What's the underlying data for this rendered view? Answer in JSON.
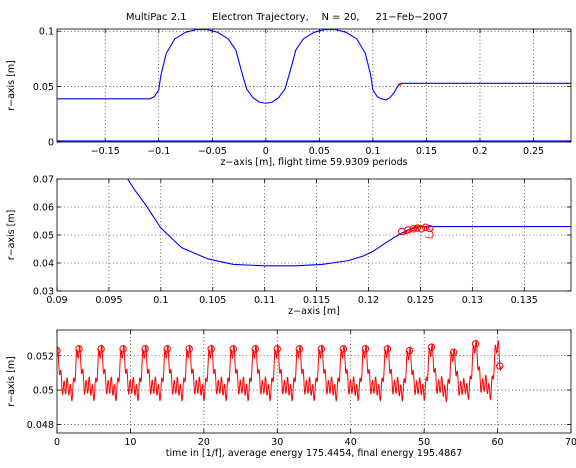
{
  "figure": {
    "title": "MultiPac 2.1        Electron Trajectory,    N = 20,     21−Feb−2007"
  },
  "colors": {
    "geometry": "#0000ff",
    "trajectory": "#ff0000",
    "axes": "#000000",
    "background": "#ffffff"
  },
  "chart_data": [
    {
      "type": "line",
      "title": "",
      "xlabel": "z−axis [m],  flight time 59.9309 periods",
      "ylabel": "r−axis [m]",
      "xlim": [
        -0.195,
        0.285
      ],
      "ylim": [
        0,
        0.102
      ],
      "xticks": [
        -0.15,
        -0.1,
        -0.05,
        0,
        0.05,
        0.1,
        0.15,
        0.2,
        0.25
      ],
      "xtick_labels": [
        "−0.15",
        "−0.1",
        "−0.05",
        "0",
        "0.05",
        "0.1",
        "0.15",
        "0.2",
        "0.25"
      ],
      "yticks": [
        0,
        0.05,
        0.1
      ],
      "ytick_labels": [
        "0",
        "0.05",
        "0.1"
      ],
      "grid": true,
      "series": [
        {
          "color": "#0000ff",
          "x": [
            -0.195,
            -0.108,
            -0.104,
            -0.1,
            -0.098,
            -0.093,
            -0.085,
            -0.075,
            -0.065,
            -0.055,
            -0.045,
            -0.035,
            -0.028,
            -0.023,
            -0.018,
            -0.012,
            -0.006,
            0,
            0.006,
            0.012,
            0.018,
            0.023,
            0.028,
            0.035,
            0.045,
            0.055,
            0.065,
            0.075,
            0.085,
            0.093,
            0.098,
            0.1,
            0.104,
            0.108,
            0.112,
            0.116,
            0.12,
            0.123,
            0.125,
            0.127,
            0.285
          ],
          "y": [
            0.039,
            0.039,
            0.041,
            0.047,
            0.06,
            0.08,
            0.093,
            0.099,
            0.1015,
            0.1015,
            0.099,
            0.093,
            0.083,
            0.065,
            0.048,
            0.04,
            0.036,
            0.035,
            0.036,
            0.04,
            0.048,
            0.065,
            0.083,
            0.093,
            0.099,
            0.1015,
            0.1015,
            0.099,
            0.093,
            0.08,
            0.06,
            0.047,
            0.041,
            0.039,
            0.038,
            0.04,
            0.045,
            0.05,
            0.052,
            0.053,
            0.053
          ]
        },
        {
          "color": "#0000ff",
          "x": [
            -0.195,
            0.285
          ],
          "y": [
            0.001,
            0.001
          ]
        },
        {
          "color": "#ff0000",
          "x": [
            0.124,
            0.1245,
            0.1252,
            0.1258,
            0.1262
          ],
          "y": [
            0.0508,
            0.0522,
            0.0515,
            0.0525,
            0.0512
          ]
        }
      ]
    },
    {
      "type": "line",
      "title": "",
      "xlabel": "z−axis [m]",
      "ylabel": "r−axis [m]",
      "xlim": [
        0.09,
        0.1395
      ],
      "ylim": [
        0.03,
        0.07
      ],
      "xticks": [
        0.09,
        0.095,
        0.1,
        0.105,
        0.11,
        0.115,
        0.12,
        0.125,
        0.13,
        0.135
      ],
      "xtick_labels": [
        "0.09",
        "0.095",
        "0.1",
        "0.105",
        "0.11",
        "0.115",
        "0.12",
        "0.125",
        "0.13",
        "0.135"
      ],
      "yticks": [
        0.03,
        0.04,
        0.05,
        0.06,
        0.07
      ],
      "ytick_labels": [
        "0.03",
        "0.04",
        "0.05",
        "0.06",
        "0.07"
      ],
      "grid": true,
      "series": [
        {
          "color": "#0000ff",
          "x": [
            0.0968,
            0.0975,
            0.0985,
            0.1,
            0.102,
            0.1045,
            0.107,
            0.11,
            0.113,
            0.1155,
            0.118,
            0.1195,
            0.1205,
            0.1215,
            0.1225,
            0.1232,
            0.1238,
            0.1245,
            0.125,
            0.1255,
            0.1395
          ],
          "y": [
            0.07,
            0.066,
            0.061,
            0.0525,
            0.0455,
            0.0415,
            0.0395,
            0.039,
            0.039,
            0.0395,
            0.0408,
            0.0425,
            0.0443,
            0.0468,
            0.0492,
            0.0507,
            0.0518,
            0.0526,
            0.053,
            0.053,
            0.053
          ]
        }
      ],
      "markers": {
        "color": "#ff0000",
        "x": [
          0.1232,
          0.1238,
          0.1243,
          0.1247,
          0.1251,
          0.1255,
          0.1259
        ],
        "y": [
          0.0513,
          0.0518,
          0.0522,
          0.0525,
          0.0522,
          0.0528,
          0.0523
        ]
      },
      "trajectory_region": {
        "color": "#ff0000",
        "x_range": [
          0.1235,
          0.1265
        ],
        "y_range": [
          0.0488,
          0.0532
        ]
      }
    },
    {
      "type": "line",
      "title": "",
      "xlabel": "time in [1/f], average energy 175.4454, final energy 195.4867",
      "ylabel": "r−axis [m]",
      "xlim": [
        0,
        70
      ],
      "ylim": [
        0.0475,
        0.0535
      ],
      "xticks": [
        0,
        10,
        20,
        30,
        40,
        50,
        60,
        70
      ],
      "xtick_labels": [
        "0",
        "10",
        "20",
        "30",
        "40",
        "50",
        "60",
        "70"
      ],
      "yticks": [
        0.048,
        0.05,
        0.052
      ],
      "ytick_labels": [
        "0.048",
        "0.05",
        "0.052"
      ],
      "grid": true,
      "series": [
        {
          "color": "#ff0000",
          "period": 3,
          "duration": 60.5,
          "peak_base": 0.0522,
          "trough_base": 0.0491,
          "final_value": 0.0514
        }
      ],
      "markers": {
        "color": "#ff0000",
        "x": [
          0,
          3,
          6,
          9,
          12,
          15,
          18,
          21,
          24,
          27,
          30,
          33,
          36,
          39,
          42,
          45,
          48,
          51,
          54,
          57,
          60.3
        ],
        "y": [
          0.0523,
          0.0524,
          0.0524,
          0.0524,
          0.0524,
          0.0524,
          0.0524,
          0.0524,
          0.0524,
          0.0524,
          0.0524,
          0.0524,
          0.0524,
          0.0524,
          0.0524,
          0.0524,
          0.0523,
          0.0525,
          0.0522,
          0.0527,
          0.0514
        ]
      }
    }
  ]
}
